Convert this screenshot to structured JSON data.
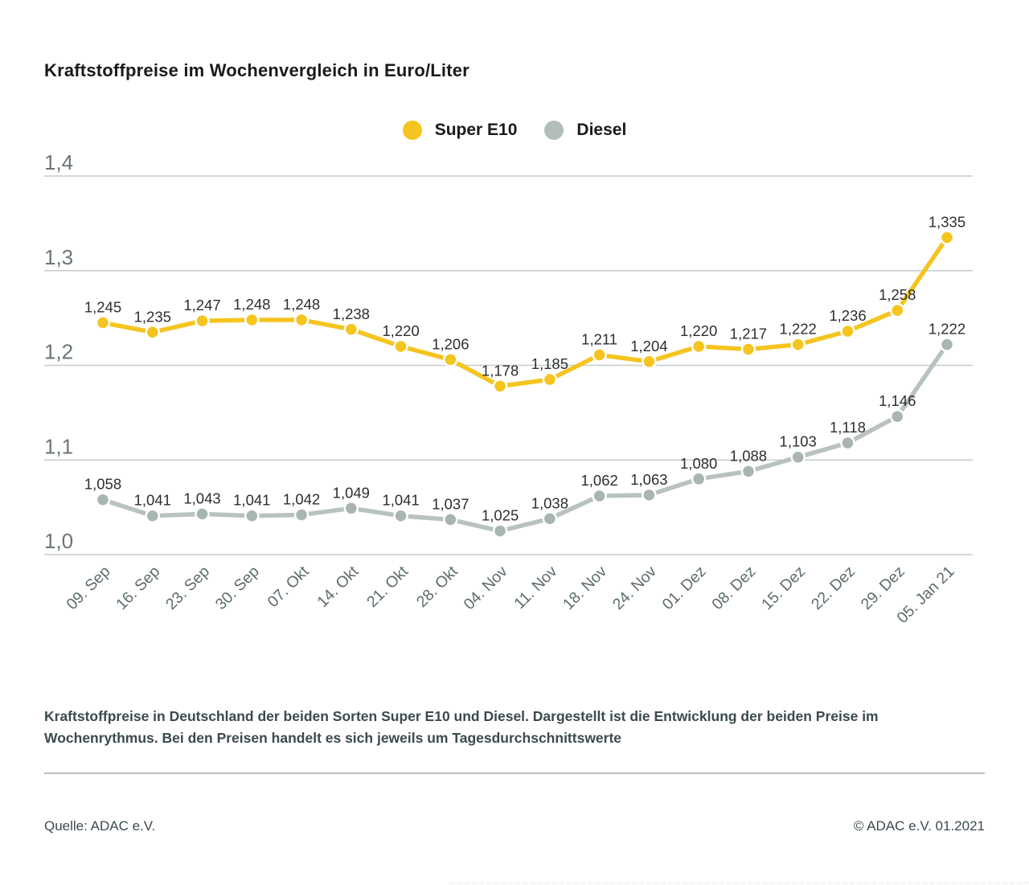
{
  "title": "Kraftstoffpreise im Wochenvergleich in Euro/Liter",
  "legend": {
    "items": [
      {
        "name": "super-e10",
        "label": "Super E10",
        "color": "#F5C41F"
      },
      {
        "name": "diesel",
        "label": "Diesel",
        "color": "#B3BDBA"
      }
    ]
  },
  "chart_data": {
    "type": "line",
    "title": "Kraftstoffpreise im Wochenvergleich in Euro/Liter",
    "xlabel": "",
    "ylabel": "Euro/Liter",
    "ylim": [
      1.0,
      1.4
    ],
    "grid": true,
    "legend_position": "top-center",
    "y_tick_labels": [
      "1,4",
      "1,3",
      "1,2",
      "1,1",
      "1,0"
    ],
    "y_tick_values": [
      1.4,
      1.3,
      1.2,
      1.1,
      1.0
    ],
    "categories": [
      "09. Sep",
      "16. Sep",
      "23. Sep",
      "30. Sep",
      "07. Okt",
      "14. Okt",
      "21. Okt",
      "28. Okt",
      "04. Nov",
      "11. Nov",
      "18. Nov",
      "24. Nov",
      "01. Dez",
      "08. Dez",
      "15. Dez",
      "22. Dez",
      "29. Dez",
      "05. Jan 21"
    ],
    "series": [
      {
        "name": "Super E10",
        "line_color": "#F5C41F",
        "dot_color": "#F5C41F",
        "values": [
          1.245,
          1.235,
          1.247,
          1.248,
          1.248,
          1.238,
          1.22,
          1.206,
          1.178,
          1.185,
          1.211,
          1.204,
          1.22,
          1.217,
          1.222,
          1.236,
          1.258,
          1.335
        ],
        "value_labels": [
          "1,245",
          "1,235",
          "1,247",
          "1,248",
          "1,248",
          "1,238",
          "1,220",
          "1,206",
          "1,178",
          "1,185",
          "1,211",
          "1,204",
          "1,220",
          "1,217",
          "1,222",
          "1,236",
          "1,258",
          "1,335"
        ]
      },
      {
        "name": "Diesel",
        "line_color": "#B8C2BF",
        "dot_color": "#A9B5B2",
        "values": [
          1.058,
          1.041,
          1.043,
          1.041,
          1.042,
          1.049,
          1.041,
          1.037,
          1.025,
          1.038,
          1.062,
          1.063,
          1.08,
          1.088,
          1.103,
          1.118,
          1.146,
          1.222
        ],
        "value_labels": [
          "1,058",
          "1,041",
          "1,043",
          "1,041",
          "1,042",
          "1,049",
          "1,041",
          "1,037",
          "1,025",
          "1,038",
          "1,062",
          "1,063",
          "1,080",
          "1,088",
          "1,103",
          "1,118",
          "1,146",
          "1,222"
        ]
      }
    ]
  },
  "caption": "Kraftstoffpreise in Deutschland der beiden Sorten Super E10 und Diesel. Dargestellt ist die Entwicklung der beiden Preise im Wochenrythmus. Bei den Preisen handelt es sich jeweils um Tagesdurchschnittswerte",
  "footer": {
    "source": "Quelle: ADAC e.V.",
    "copyright": "© ADAC e.V. 01.2021"
  },
  "colors": {
    "grid_line": "#c6cdcc",
    "y_tick_text": "#6b7675",
    "x_tick_text": "#5d6c6b",
    "value_label_text": "#2b2f31"
  }
}
